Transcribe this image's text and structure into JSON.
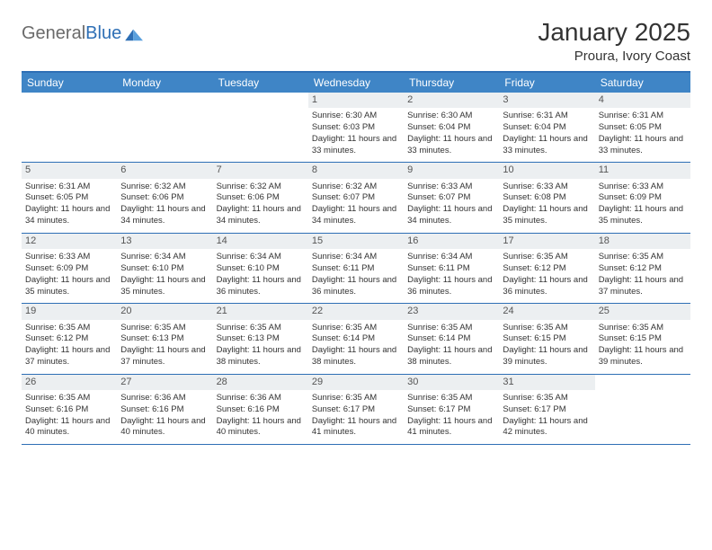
{
  "brand": {
    "part1": "General",
    "part2": "Blue"
  },
  "title": "January 2025",
  "location": "Proura, Ivory Coast",
  "colors": {
    "headerBar": "#3f85c6",
    "rule": "#2e6fb5",
    "dayNumBg": "#eceff1",
    "text": "#333333"
  },
  "dow": [
    "Sunday",
    "Monday",
    "Tuesday",
    "Wednesday",
    "Thursday",
    "Friday",
    "Saturday"
  ],
  "weeks": [
    [
      null,
      null,
      null,
      {
        "n": "1",
        "sr": "6:30 AM",
        "ss": "6:03 PM",
        "dl": "11 hours and 33 minutes."
      },
      {
        "n": "2",
        "sr": "6:30 AM",
        "ss": "6:04 PM",
        "dl": "11 hours and 33 minutes."
      },
      {
        "n": "3",
        "sr": "6:31 AM",
        "ss": "6:04 PM",
        "dl": "11 hours and 33 minutes."
      },
      {
        "n": "4",
        "sr": "6:31 AM",
        "ss": "6:05 PM",
        "dl": "11 hours and 33 minutes."
      }
    ],
    [
      {
        "n": "5",
        "sr": "6:31 AM",
        "ss": "6:05 PM",
        "dl": "11 hours and 34 minutes."
      },
      {
        "n": "6",
        "sr": "6:32 AM",
        "ss": "6:06 PM",
        "dl": "11 hours and 34 minutes."
      },
      {
        "n": "7",
        "sr": "6:32 AM",
        "ss": "6:06 PM",
        "dl": "11 hours and 34 minutes."
      },
      {
        "n": "8",
        "sr": "6:32 AM",
        "ss": "6:07 PM",
        "dl": "11 hours and 34 minutes."
      },
      {
        "n": "9",
        "sr": "6:33 AM",
        "ss": "6:07 PM",
        "dl": "11 hours and 34 minutes."
      },
      {
        "n": "10",
        "sr": "6:33 AM",
        "ss": "6:08 PM",
        "dl": "11 hours and 35 minutes."
      },
      {
        "n": "11",
        "sr": "6:33 AM",
        "ss": "6:09 PM",
        "dl": "11 hours and 35 minutes."
      }
    ],
    [
      {
        "n": "12",
        "sr": "6:33 AM",
        "ss": "6:09 PM",
        "dl": "11 hours and 35 minutes."
      },
      {
        "n": "13",
        "sr": "6:34 AM",
        "ss": "6:10 PM",
        "dl": "11 hours and 35 minutes."
      },
      {
        "n": "14",
        "sr": "6:34 AM",
        "ss": "6:10 PM",
        "dl": "11 hours and 36 minutes."
      },
      {
        "n": "15",
        "sr": "6:34 AM",
        "ss": "6:11 PM",
        "dl": "11 hours and 36 minutes."
      },
      {
        "n": "16",
        "sr": "6:34 AM",
        "ss": "6:11 PM",
        "dl": "11 hours and 36 minutes."
      },
      {
        "n": "17",
        "sr": "6:35 AM",
        "ss": "6:12 PM",
        "dl": "11 hours and 36 minutes."
      },
      {
        "n": "18",
        "sr": "6:35 AM",
        "ss": "6:12 PM",
        "dl": "11 hours and 37 minutes."
      }
    ],
    [
      {
        "n": "19",
        "sr": "6:35 AM",
        "ss": "6:12 PM",
        "dl": "11 hours and 37 minutes."
      },
      {
        "n": "20",
        "sr": "6:35 AM",
        "ss": "6:13 PM",
        "dl": "11 hours and 37 minutes."
      },
      {
        "n": "21",
        "sr": "6:35 AM",
        "ss": "6:13 PM",
        "dl": "11 hours and 38 minutes."
      },
      {
        "n": "22",
        "sr": "6:35 AM",
        "ss": "6:14 PM",
        "dl": "11 hours and 38 minutes."
      },
      {
        "n": "23",
        "sr": "6:35 AM",
        "ss": "6:14 PM",
        "dl": "11 hours and 38 minutes."
      },
      {
        "n": "24",
        "sr": "6:35 AM",
        "ss": "6:15 PM",
        "dl": "11 hours and 39 minutes."
      },
      {
        "n": "25",
        "sr": "6:35 AM",
        "ss": "6:15 PM",
        "dl": "11 hours and 39 minutes."
      }
    ],
    [
      {
        "n": "26",
        "sr": "6:35 AM",
        "ss": "6:16 PM",
        "dl": "11 hours and 40 minutes."
      },
      {
        "n": "27",
        "sr": "6:36 AM",
        "ss": "6:16 PM",
        "dl": "11 hours and 40 minutes."
      },
      {
        "n": "28",
        "sr": "6:36 AM",
        "ss": "6:16 PM",
        "dl": "11 hours and 40 minutes."
      },
      {
        "n": "29",
        "sr": "6:35 AM",
        "ss": "6:17 PM",
        "dl": "11 hours and 41 minutes."
      },
      {
        "n": "30",
        "sr": "6:35 AM",
        "ss": "6:17 PM",
        "dl": "11 hours and 41 minutes."
      },
      {
        "n": "31",
        "sr": "6:35 AM",
        "ss": "6:17 PM",
        "dl": "11 hours and 42 minutes."
      },
      null
    ]
  ],
  "labels": {
    "sunrise": "Sunrise:",
    "sunset": "Sunset:",
    "daylight": "Daylight:"
  }
}
